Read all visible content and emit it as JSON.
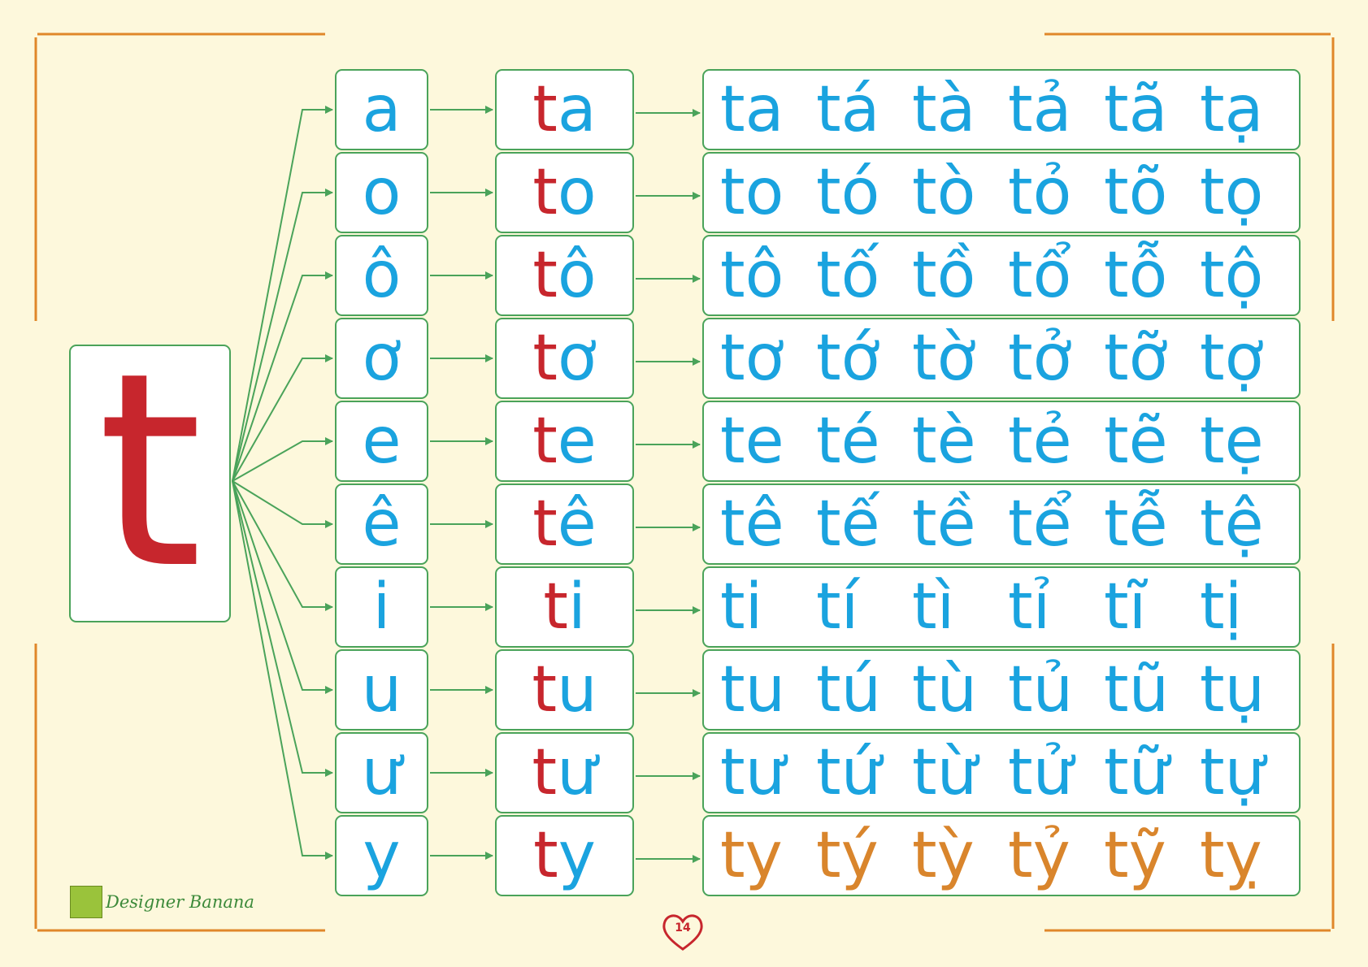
{
  "consonant": "t",
  "rows": [
    {
      "vowel": "a",
      "syllable_consonant": "t",
      "syllable_vowel": "a",
      "tones": [
        "ta",
        "tá",
        "tà",
        "tả",
        "tã",
        "tạ"
      ],
      "highlight": false
    },
    {
      "vowel": "o",
      "syllable_consonant": "t",
      "syllable_vowel": "o",
      "tones": [
        "to",
        "tó",
        "tò",
        "tỏ",
        "tõ",
        "tọ"
      ],
      "highlight": false
    },
    {
      "vowel": "ô",
      "syllable_consonant": "t",
      "syllable_vowel": "ô",
      "tones": [
        "tô",
        "tố",
        "tồ",
        "tổ",
        "tỗ",
        "tộ"
      ],
      "highlight": false
    },
    {
      "vowel": "ơ",
      "syllable_consonant": "t",
      "syllable_vowel": "ơ",
      "tones": [
        "tơ",
        "tớ",
        "tờ",
        "tở",
        "tỡ",
        "tợ"
      ],
      "highlight": false
    },
    {
      "vowel": "e",
      "syllable_consonant": "t",
      "syllable_vowel": "e",
      "tones": [
        "te",
        "té",
        "tè",
        "tẻ",
        "tẽ",
        "tẹ"
      ],
      "highlight": false
    },
    {
      "vowel": "ê",
      "syllable_consonant": "t",
      "syllable_vowel": "ê",
      "tones": [
        "tê",
        "tế",
        "tề",
        "tể",
        "tễ",
        "tệ"
      ],
      "highlight": false
    },
    {
      "vowel": "i",
      "syllable_consonant": "t",
      "syllable_vowel": "i",
      "tones": [
        "ti",
        "tí",
        "tì",
        "tỉ",
        "tĩ",
        "tị"
      ],
      "highlight": false
    },
    {
      "vowel": "u",
      "syllable_consonant": "t",
      "syllable_vowel": "u",
      "tones": [
        "tu",
        "tú",
        "tù",
        "tủ",
        "tũ",
        "tụ"
      ],
      "highlight": false
    },
    {
      "vowel": "ư",
      "syllable_consonant": "t",
      "syllable_vowel": "ư",
      "tones": [
        "tư",
        "tứ",
        "từ",
        "tử",
        "tữ",
        "tự"
      ],
      "highlight": false
    },
    {
      "vowel": "y",
      "syllable_consonant": "t",
      "syllable_vowel": "y",
      "tones": [
        "ty",
        "tý",
        "tỳ",
        "tỷ",
        "tỹ",
        "tỵ"
      ],
      "highlight": true
    }
  ],
  "footer": {
    "logo_text": "Designer Banana",
    "page_number": "14"
  },
  "colors": {
    "background": "#fdf8dc",
    "consonant_red": "#c7262d",
    "vowel_blue": "#1aa3df",
    "highlight_orange": "#d9852c",
    "line_green": "#4aa35a",
    "frame_orange": "#e0872a"
  }
}
